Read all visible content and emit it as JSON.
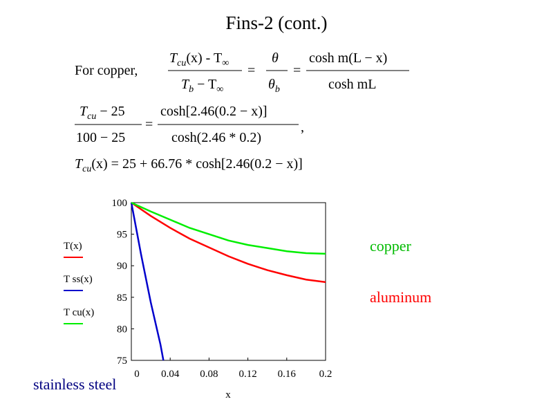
{
  "title": "Fins-2 (cont.)",
  "math": [
    "For copper,",
    "T",
    "cu",
    "(x) - T",
    "∞",
    "T",
    "b",
    " − T",
    "∞",
    "=",
    "θ",
    "θ",
    "b",
    "=",
    "cosh m(L − x)",
    "cosh mL",
    "T",
    "cu",
    " − 25",
    "100 − 25",
    "=",
    "cosh[2.46(0.2 − x)]",
    "cosh(2.46 * 0.2)",
    ",",
    "T",
    "cu",
    "(x) = 25 + 66.76 * cosh[2.46(0.2 − x)]"
  ],
  "chart_data": {
    "type": "line",
    "x_label": "x",
    "xlim": [
      0,
      0.2
    ],
    "xticks": [
      0,
      0.04,
      0.08,
      0.12,
      0.16,
      0.2
    ],
    "ylim": [
      75,
      100
    ],
    "yticks": [
      75,
      80,
      85,
      90,
      95,
      100
    ],
    "series": [
      {
        "name": "T(x)",
        "color": "#ff0000",
        "x": [
          0,
          0.02,
          0.04,
          0.06,
          0.08,
          0.1,
          0.12,
          0.14,
          0.16,
          0.18,
          0.2
        ],
        "values": [
          100,
          97.9,
          96.0,
          94.3,
          92.9,
          91.5,
          90.3,
          89.3,
          88.5,
          87.8,
          87.4
        ]
      },
      {
        "name": "T ss(x)",
        "color": "#0000cc",
        "x": [
          0,
          0.01,
          0.02,
          0.03,
          0.033
        ],
        "values": [
          100,
          91.8,
          84.2,
          77.5,
          75
        ]
      },
      {
        "name": "T cu(x)",
        "color": "#00ee00",
        "x": [
          0,
          0.02,
          0.04,
          0.06,
          0.08,
          0.1,
          0.12,
          0.14,
          0.16,
          0.18,
          0.2
        ],
        "values": [
          100,
          98.6,
          97.3,
          96.0,
          95.0,
          94.0,
          93.3,
          92.8,
          92.3,
          92.0,
          91.9
        ]
      }
    ],
    "annotations": [
      {
        "text": "copper",
        "color": "#00bb00"
      },
      {
        "text": "aluminum",
        "color": "#ff0000"
      },
      {
        "text": "stainless steel",
        "color": "#000080"
      }
    ]
  }
}
